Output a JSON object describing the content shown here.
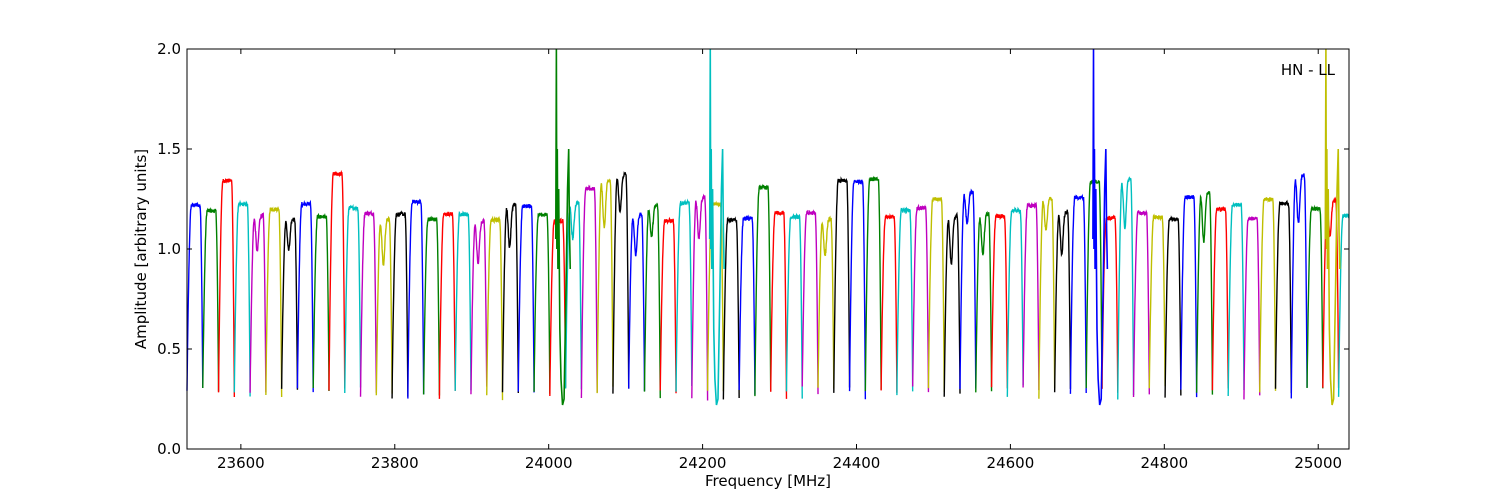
{
  "chart_data": {
    "type": "line",
    "xlabel": "Frequency [MHz]",
    "ylabel": "Amplitude [arbitrary units]",
    "xlim": [
      23530,
      25040
    ],
    "ylim": [
      0.0,
      2.0
    ],
    "xticks": [
      "23600",
      "23800",
      "24000",
      "24200",
      "24400",
      "24600",
      "24800",
      "25000"
    ],
    "yticks": [
      "0.0",
      "0.5",
      "1.0",
      "1.5",
      "2.0"
    ],
    "annotation": "HN - LL",
    "grid": false,
    "legend": "none",
    "color_cycle": [
      "#0000ff",
      "#008000",
      "#ff0000",
      "#00bfbf",
      "#bf00bf",
      "#bfbf00",
      "#000000"
    ],
    "bandpass_channels": {
      "start_mhz": 23530,
      "channel_width_mhz": 20.5,
      "channel_count": 74,
      "typical_peak": 1.2,
      "typical_floor": 0.28
    },
    "spikes": [
      {
        "x": 24010,
        "y_max": 2.0,
        "color": "#008000"
      },
      {
        "x": 24210,
        "y_max": 2.0,
        "color": "#00bfbf"
      },
      {
        "x": 24708,
        "y_max": 2.0,
        "color": "#0000ff"
      },
      {
        "x": 25010,
        "y_max": 2.0,
        "color": "#bfbf00"
      }
    ]
  }
}
